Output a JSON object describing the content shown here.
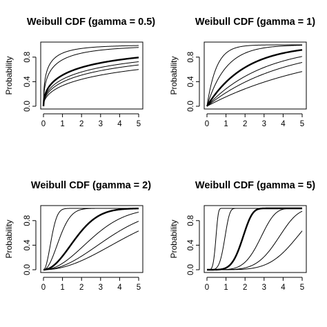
{
  "chart_data": [
    {
      "type": "line",
      "title": "Weibull CDF (gamma = 0.5)",
      "ylabel": "Probability",
      "xlabel": "",
      "gamma": 0.5,
      "xlim": [
        0,
        5
      ],
      "ylim": [
        0,
        1
      ],
      "x_ticks": [
        0,
        1,
        2,
        3,
        4,
        5
      ],
      "y_ticks": [
        0.0,
        0.4,
        0.8
      ],
      "y_tick_labels": [
        "0.0",
        "0.4",
        "0.8"
      ],
      "grid": false,
      "series": [
        {
          "scale": 0.25,
          "bold": false
        },
        {
          "scale": 0.5,
          "bold": false
        },
        {
          "scale": 2,
          "bold": true
        },
        {
          "scale": 3,
          "bold": false
        },
        {
          "scale": 4,
          "bold": false
        },
        {
          "scale": 6,
          "bold": false
        }
      ]
    },
    {
      "type": "line",
      "title": "Weibull CDF (gamma = 1)",
      "ylabel": "Probability",
      "xlabel": "",
      "gamma": 1,
      "xlim": [
        0,
        5
      ],
      "ylim": [
        0,
        1
      ],
      "x_ticks": [
        0,
        1,
        2,
        3,
        4,
        5
      ],
      "y_ticks": [
        0.0,
        0.4,
        0.8
      ],
      "y_tick_labels": [
        "0.0",
        "0.4",
        "0.8"
      ],
      "grid": false,
      "series": [
        {
          "scale": 0.5,
          "bold": false
        },
        {
          "scale": 1,
          "bold": false
        },
        {
          "scale": 2,
          "bold": true
        },
        {
          "scale": 3,
          "bold": false
        },
        {
          "scale": 4,
          "bold": false
        },
        {
          "scale": 6,
          "bold": false
        }
      ]
    },
    {
      "type": "line",
      "title": "Weibull CDF (gamma = 2)",
      "ylabel": "Probability",
      "xlabel": "",
      "gamma": 2,
      "xlim": [
        0,
        5
      ],
      "ylim": [
        0,
        1
      ],
      "x_ticks": [
        0,
        1,
        2,
        3,
        4,
        5
      ],
      "y_ticks": [
        0.0,
        0.4,
        0.8
      ],
      "y_tick_labels": [
        "0.0",
        "0.4",
        "0.8"
      ],
      "grid": false,
      "series": [
        {
          "scale": 0.5,
          "bold": false
        },
        {
          "scale": 1,
          "bold": false
        },
        {
          "scale": 2,
          "bold": true
        },
        {
          "scale": 3,
          "bold": false
        },
        {
          "scale": 4,
          "bold": false
        },
        {
          "scale": 5,
          "bold": false
        }
      ]
    },
    {
      "type": "line",
      "title": "Weibull CDF (gamma = 5)",
      "ylabel": "Probability",
      "xlabel": "",
      "gamma": 5,
      "xlim": [
        0,
        5
      ],
      "ylim": [
        0,
        1
      ],
      "x_ticks": [
        0,
        1,
        2,
        3,
        4,
        5
      ],
      "y_ticks": [
        0.0,
        0.4,
        0.8
      ],
      "y_tick_labels": [
        "0.0",
        "0.4",
        "0.8"
      ],
      "grid": false,
      "series": [
        {
          "scale": 0.5,
          "bold": false
        },
        {
          "scale": 1,
          "bold": false
        },
        {
          "scale": 2,
          "bold": true
        },
        {
          "scale": 3,
          "bold": false
        },
        {
          "scale": 4,
          "bold": false
        },
        {
          "scale": 5,
          "bold": false
        }
      ]
    }
  ]
}
